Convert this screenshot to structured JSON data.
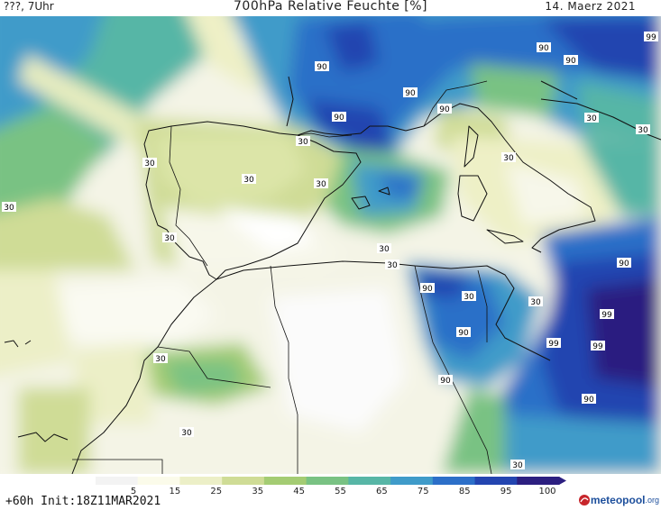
{
  "header": {
    "left": "???, 7Uhr",
    "title": "700hPa Relative Feuchte [%]",
    "date": "14. Maerz 2021"
  },
  "footer": {
    "run_info": "+60h Init:18Z11MAR2021",
    "logo_name": "meteopool",
    "logo_suffix": ".org"
  },
  "legend": {
    "ticks": [
      "5",
      "15",
      "25",
      "35",
      "45",
      "55",
      "65",
      "75",
      "85",
      "95",
      "100"
    ],
    "colors": [
      "#f3f3f3",
      "#fbfbea",
      "#ecefc7",
      "#cfdc96",
      "#a4cc73",
      "#79c283",
      "#57b6a6",
      "#3f9bc9",
      "#2c6fc8",
      "#2345b0",
      "#2c1f80"
    ]
  },
  "map": {
    "contour_labels": [
      "90",
      "99",
      "90",
      "90",
      "90",
      "90",
      "90",
      "90",
      "30",
      "30",
      "30",
      "30",
      "30",
      "30",
      "30",
      "30",
      "30",
      "30",
      "30",
      "90",
      "90",
      "30",
      "90",
      "99",
      "99",
      "99",
      "90",
      "30",
      "30",
      "30",
      "30"
    ]
  }
}
